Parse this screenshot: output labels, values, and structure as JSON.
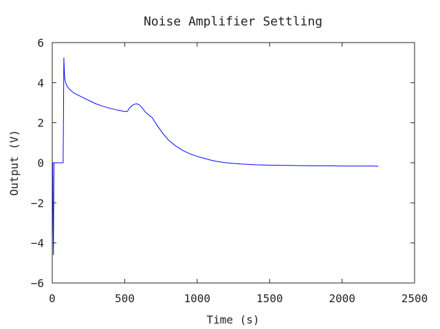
{
  "chart_data": {
    "type": "line",
    "title": "Noise Amplifier Settling",
    "xlabel": "Time (s)",
    "ylabel": "Output (V)",
    "xlim": [
      0,
      2500
    ],
    "ylim": [
      -6,
      6
    ],
    "x_ticks": [
      0,
      500,
      1000,
      1500,
      2000,
      2500
    ],
    "y_ticks": [
      -6,
      -4,
      -2,
      0,
      2,
      4,
      6
    ],
    "x_tick_labels": [
      "0",
      "500",
      "1000",
      "1500",
      "2000",
      "2500"
    ],
    "y_tick_labels": [
      "−6",
      "−4",
      "−2",
      "0",
      "2",
      "4",
      "6"
    ],
    "grid": false,
    "series_color": "#0000ff",
    "series": [
      {
        "x": [
          0,
          3,
          6,
          8,
          10,
          12,
          14,
          16,
          20,
          30,
          50,
          70,
          75,
          78,
          80,
          82,
          85,
          90,
          100,
          120,
          150,
          200,
          250,
          300,
          350,
          400,
          450,
          490,
          510,
          520,
          530,
          545,
          560,
          580,
          600,
          620,
          640,
          660,
          690,
          720,
          760,
          800,
          850,
          900,
          950,
          1000,
          1050,
          1100,
          1150,
          1200,
          1300,
          1400,
          1500,
          1600,
          1700,
          1800,
          1900,
          2000,
          2100,
          2200,
          2250
        ],
        "y": [
          0,
          0,
          -3.5,
          -4.6,
          -2.0,
          0,
          0,
          0,
          0,
          0,
          0,
          0,
          0,
          2.5,
          5.25,
          4.8,
          4.3,
          4.05,
          3.85,
          3.65,
          3.48,
          3.3,
          3.12,
          2.95,
          2.82,
          2.72,
          2.63,
          2.57,
          2.55,
          2.58,
          2.7,
          2.82,
          2.9,
          2.95,
          2.9,
          2.75,
          2.55,
          2.42,
          2.25,
          1.9,
          1.5,
          1.15,
          0.85,
          0.62,
          0.45,
          0.32,
          0.22,
          0.12,
          0.05,
          0.0,
          -0.06,
          -0.1,
          -0.12,
          -0.13,
          -0.14,
          -0.15,
          -0.15,
          -0.16,
          -0.16,
          -0.16,
          -0.17
        ]
      }
    ]
  }
}
